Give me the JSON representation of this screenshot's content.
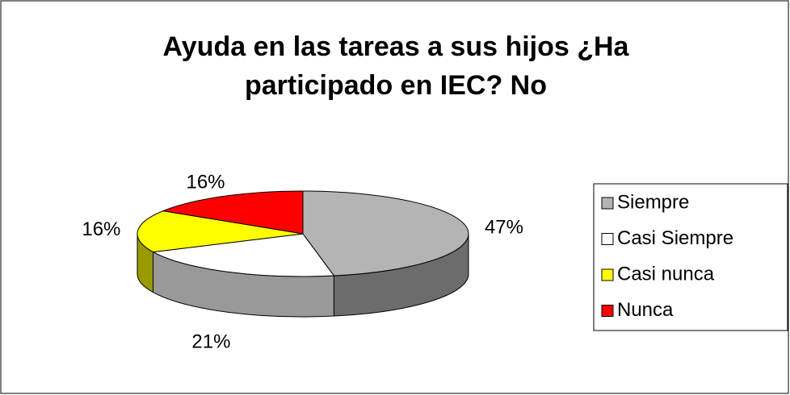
{
  "chart_data": {
    "type": "pie",
    "title": [
      "Ayuda en las tareas a sus hijos ¿Ha",
      "participado en IEC? No"
    ],
    "categories": [
      "Siempre",
      "Casi Siempre",
      "Casi nunca",
      "Nunca"
    ],
    "values": [
      47,
      21,
      16,
      16
    ],
    "value_labels": [
      "47%",
      "21%",
      "16%",
      "16%"
    ],
    "colors": [
      "#b4b4b4",
      "#ffffff",
      "#ffff00",
      "#ff0000"
    ],
    "legend": "right"
  }
}
